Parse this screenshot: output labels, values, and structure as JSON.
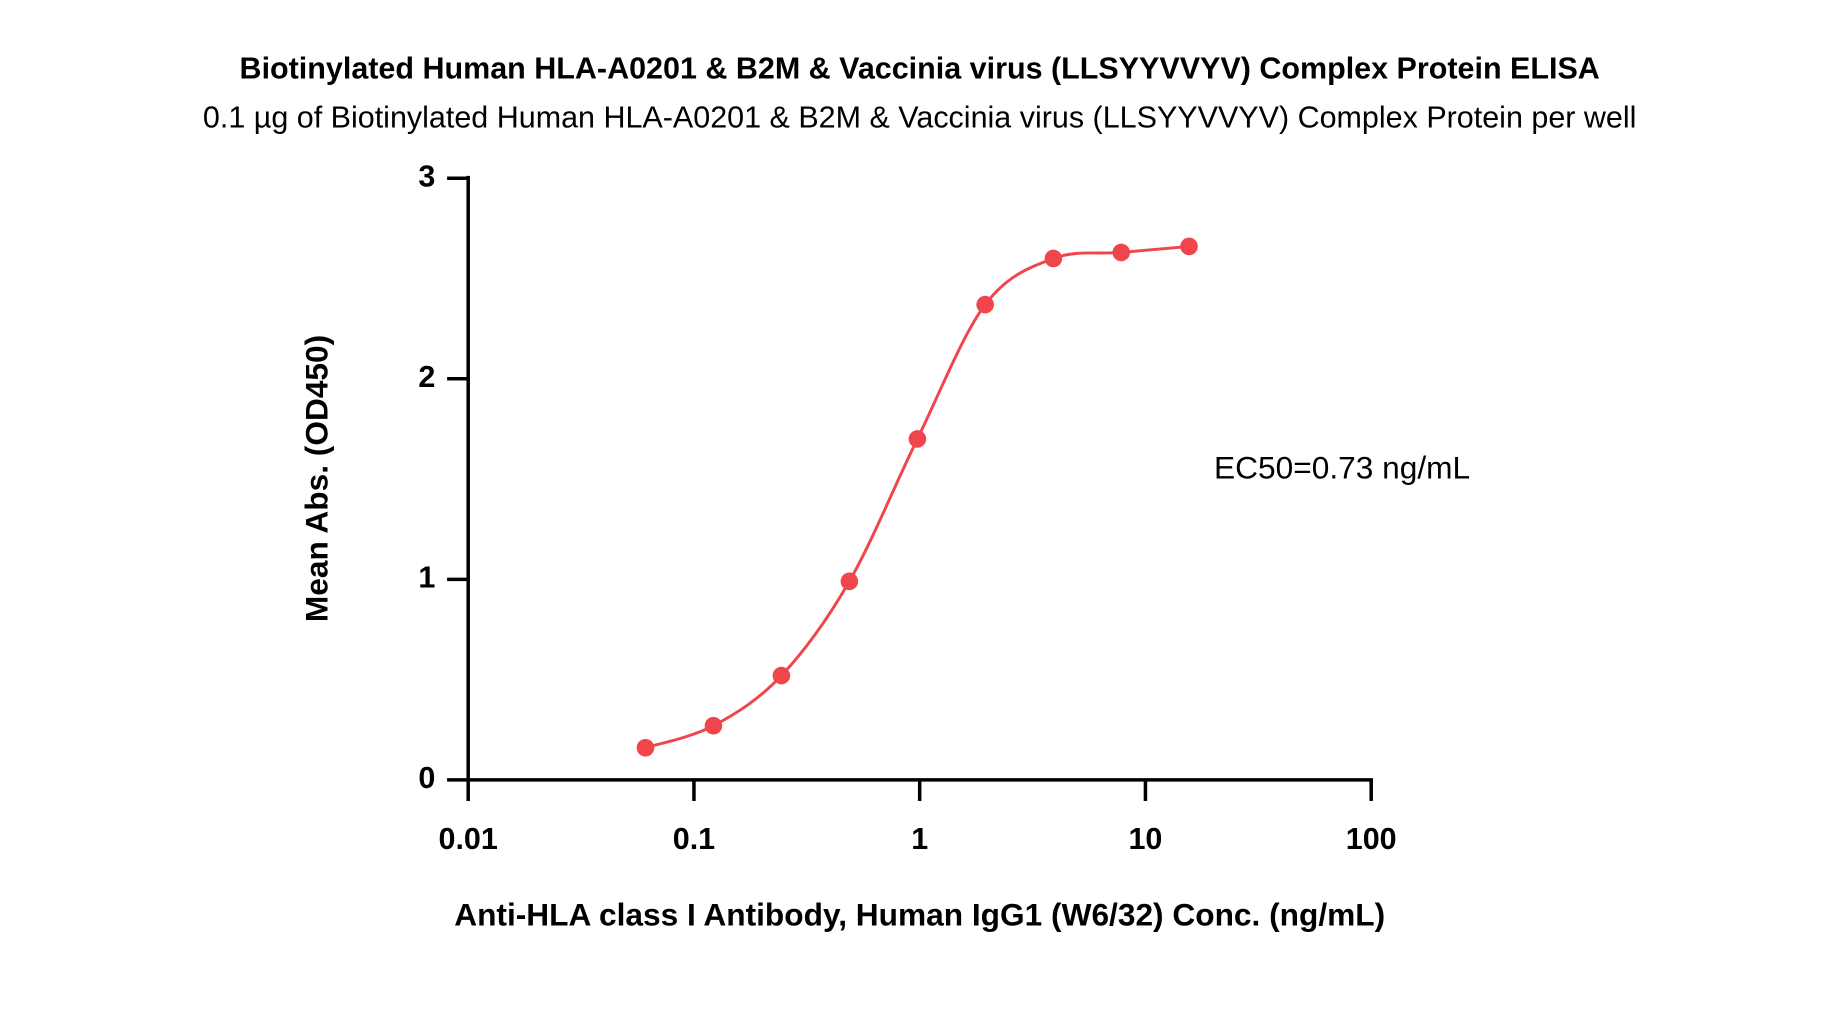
{
  "chart_data": {
    "type": "scatter",
    "title": "Biotinylated Human HLA-A0201 & B2M & Vaccinia virus (LLSYYVVYV) Complex Protein ELISA",
    "subtitle": "0.1 µg of Biotinylated Human HLA-A0201 & B2M & Vaccinia virus (LLSYYVVYV) Complex Protein per well",
    "x_label": "Anti-HLA class I Antibody, Human IgG1 (W6/32) Conc. (ng/mL)",
    "y_label": "Mean Abs. (OD450)",
    "annotation": "EC50=0.73 ng/mL",
    "x": [
      0.061,
      0.122,
      0.244,
      0.488,
      0.977,
      1.95,
      3.91,
      7.81,
      15.6
    ],
    "values": [
      0.16,
      0.27,
      0.52,
      0.99,
      1.7,
      2.37,
      2.6,
      2.63,
      2.66
    ],
    "color": "#f0454a",
    "xscale": "log",
    "xlim": [
      0.01,
      100
    ],
    "xticks": [
      0.01,
      0.1,
      1,
      10,
      100
    ],
    "ylim": [
      0,
      3
    ],
    "yticks": [
      0,
      1,
      2,
      3
    ],
    "grid": false
  }
}
